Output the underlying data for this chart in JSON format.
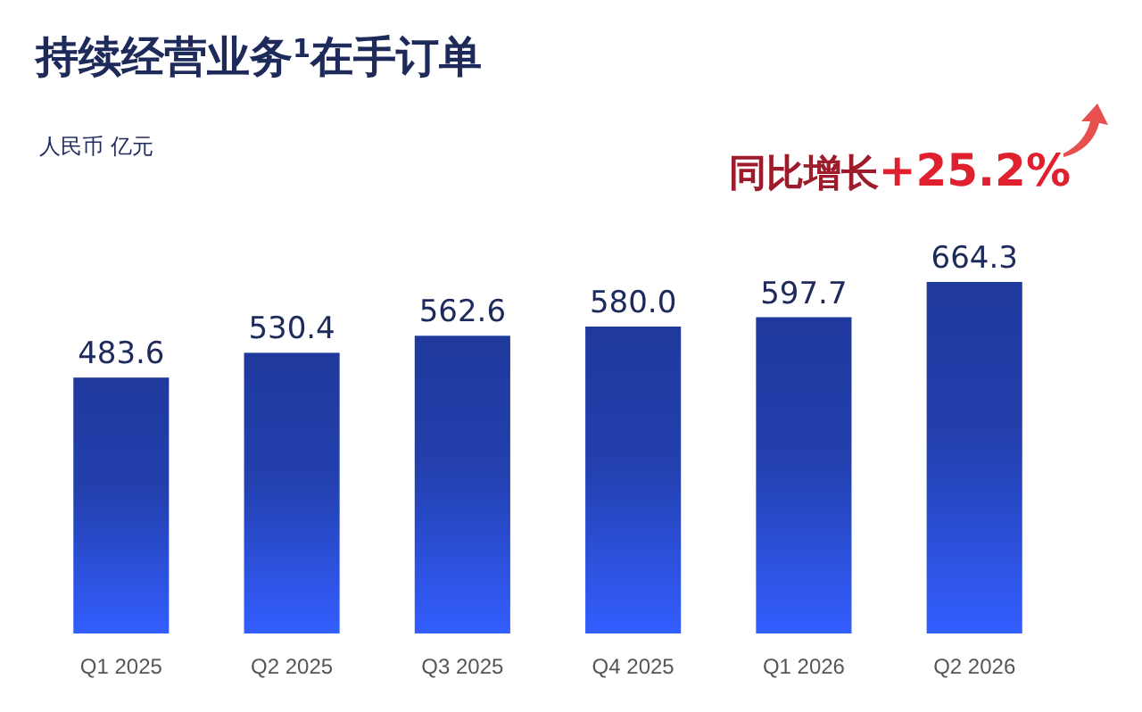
{
  "chart_data": {
    "type": "bar",
    "title": "持续经营业务$^{1}$在手订单",
    "subtitle": "人民币 亿元",
    "categories": [
      "Q1 2025",
      "Q2 2025",
      "Q3 2025",
      "Q4 2025",
      "Q1 2026",
      "Q2 2026"
    ],
    "values": [
      483.6,
      530.4,
      562.6,
      580.0,
      597.7,
      664.3
    ],
    "value_labels": [
      "483.6",
      "530.4",
      "562.6",
      "580.0",
      "597.7",
      "664.3"
    ],
    "color": "#2b4fd8",
    "tick_labels": "x",
    "grid": false,
    "annotations": [
      "同比增长+25.2%"
    ]
  }
}
